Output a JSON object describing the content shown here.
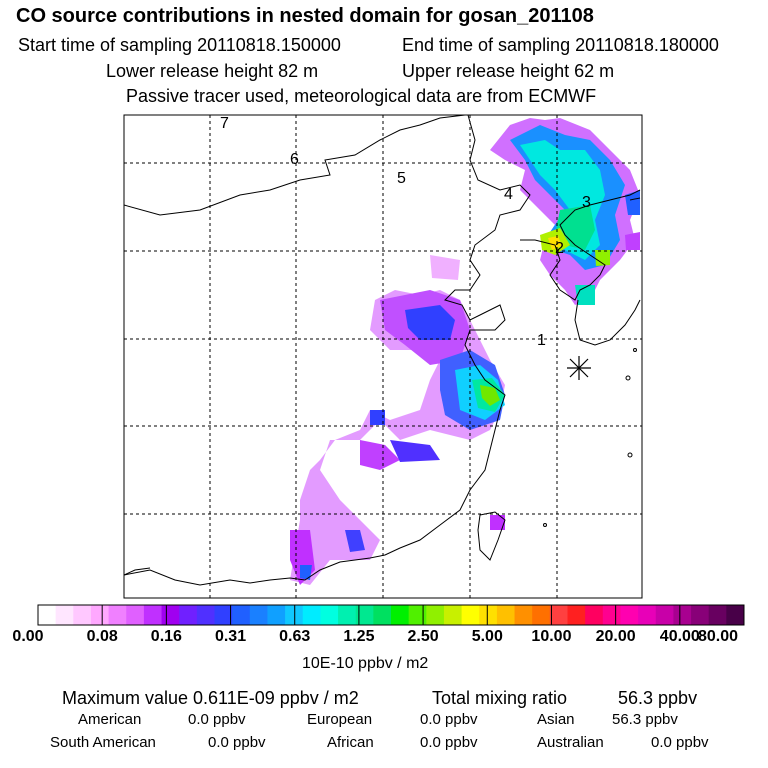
{
  "header": {
    "title": "CO  source contributions in nested domain for gosan_201108",
    "start_label": "Start time of sampling 20110818.150000",
    "end_label": "End time of sampling 20110818.180000",
    "lower_label": "Lower release height   82 m",
    "upper_label": "Upper release height   62 m",
    "info": "Passive tracer used, meteorological data are from ECMWF"
  },
  "map": {
    "receptor_marker": "star-icon",
    "day_labels": [
      "1",
      "2",
      "3",
      "4",
      "5",
      "6",
      "7"
    ]
  },
  "colorbar": {
    "ticks": [
      "0.00",
      "0.08",
      "0.16",
      "0.31",
      "0.63",
      "1.25",
      "2.50",
      "5.00",
      "10.00",
      "20.00",
      "40.00",
      "80.00"
    ],
    "unit": "10E-10 ppbv / m2",
    "colors": [
      "#ffffff",
      "#ffe6ff",
      "#ffc8ff",
      "#ffa8ff",
      "#f080ff",
      "#e060ff",
      "#c030ff",
      "#a000f0",
      "#7020ff",
      "#5030ff",
      "#3040ff",
      "#2060ff",
      "#1a80ff",
      "#10a0ff",
      "#10c8ff",
      "#00ecff",
      "#00ffe0",
      "#00f0b0",
      "#00e890",
      "#00e060",
      "#00f000",
      "#50f000",
      "#90f000",
      "#c8f000",
      "#ffff00",
      "#ffe000",
      "#ffc000",
      "#ff9000",
      "#ff7000",
      "#ff4040",
      "#ff2020",
      "#ff0060",
      "#ff0090",
      "#ff00b0",
      "#e800b8",
      "#c800a8",
      "#a80090",
      "#880078",
      "#680060",
      "#480048"
    ]
  },
  "summary": {
    "max_label": "Maximum value  0.611E-09 ppbv / m2",
    "total_label": "Total mixing ratio",
    "total_value": "56.3 ppbv",
    "regions": [
      {
        "name": "American",
        "value": "0.0 ppbv"
      },
      {
        "name": "European",
        "value": "0.0 ppbv"
      },
      {
        "name": "Asian",
        "value": "56.3 ppbv"
      },
      {
        "name": "South American",
        "value": "0.0 ppbv"
      },
      {
        "name": "African",
        "value": "0.0 ppbv"
      },
      {
        "name": "Australian",
        "value": "0.0 ppbv"
      }
    ]
  }
}
